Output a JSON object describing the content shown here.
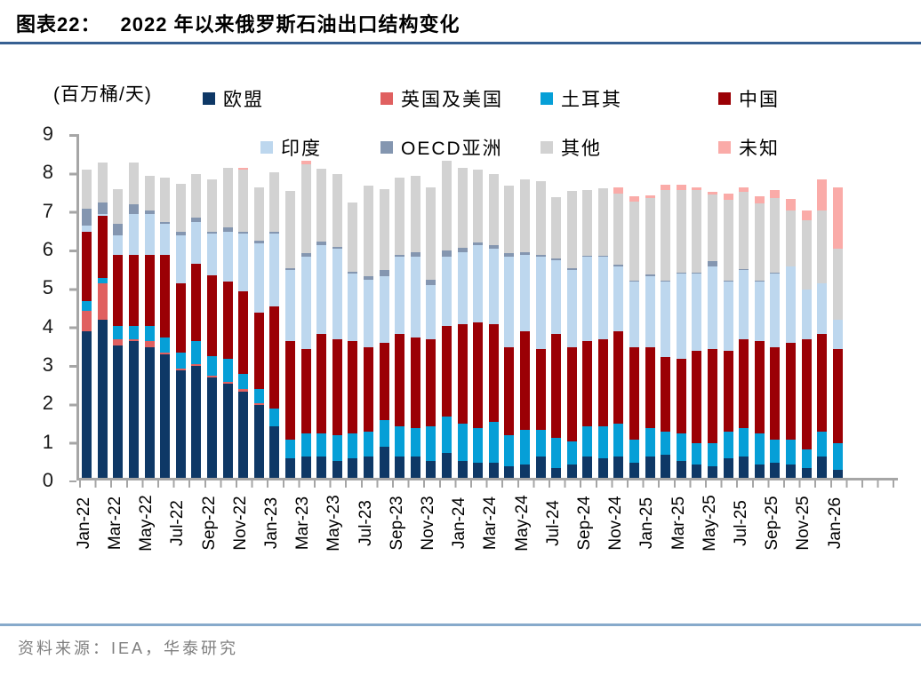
{
  "header": {
    "label": "图表22：",
    "title": "2022 年以来俄罗斯石油出口结构变化"
  },
  "footer": {
    "source": "资料来源：IEA，华泰研究"
  },
  "chart_data": {
    "type": "bar",
    "stacked": true,
    "title": "2022 年以来俄罗斯石油出口结构变化",
    "unit_label": "(百万桶/天)",
    "ylabel": "百万桶/天",
    "ylim": [
      0,
      9
    ],
    "yticks": [
      0,
      1,
      2,
      3,
      4,
      5,
      6,
      7,
      8,
      9
    ],
    "grid": false,
    "legend_position": "top",
    "axis_color": "#a6a6a6",
    "categories": [
      "Jan-22",
      "Feb-22",
      "Mar-22",
      "Apr-22",
      "May-22",
      "Jun-22",
      "Jul-22",
      "Aug-22",
      "Sep-22",
      "Oct-22",
      "Nov-22",
      "Dec-22",
      "Jan-23",
      "Feb-23",
      "Mar-23",
      "Apr-23",
      "May-23",
      "Jun-23",
      "Jul-23",
      "Aug-23",
      "Sep-23",
      "Oct-23",
      "Nov-23",
      "Dec-23",
      "Jan-24",
      "Feb-24",
      "Mar-24",
      "Apr-24",
      "May-24",
      "Jun-24",
      "Jul-24",
      "Aug-24",
      "Sep-24",
      "Oct-24",
      "Nov-24",
      "Dec-24",
      "Jan-25",
      "Feb-25",
      "Mar-25",
      "Apr-25",
      "May-25",
      "Jun-25",
      "Jul-25",
      "Aug-25",
      "Sep-25",
      "Oct-25",
      "Nov-25",
      "Dec-25",
      "Jan-26"
    ],
    "x_tick_labels_shown_every": 2,
    "series": [
      {
        "key": "eu",
        "name": "欧盟",
        "color": "#0e3866",
        "values": [
          3.8,
          4.1,
          3.45,
          3.55,
          3.4,
          3.2,
          2.8,
          2.9,
          2.6,
          2.45,
          2.25,
          1.9,
          1.35,
          0.5,
          0.55,
          0.55,
          0.45,
          0.5,
          0.55,
          0.8,
          0.55,
          0.55,
          0.45,
          0.65,
          0.45,
          0.4,
          0.4,
          0.3,
          0.35,
          0.55,
          0.25,
          0.35,
          0.55,
          0.5,
          0.55,
          0.4,
          0.55,
          0.6,
          0.45,
          0.35,
          0.3,
          0.5,
          0.55,
          0.35,
          0.4,
          0.35,
          0.25,
          0.55,
          0.2
        ]
      },
      {
        "key": "uk-us",
        "name": "英国及美国",
        "color": "#e06060",
        "values": [
          0.55,
          0.95,
          0.15,
          0.05,
          0.15,
          0.05,
          0.05,
          0.05,
          0.05,
          0.05,
          0.05,
          0.05,
          0,
          0,
          0,
          0,
          0,
          0,
          0,
          0,
          0,
          0,
          0,
          0,
          0,
          0,
          0,
          0,
          0,
          0,
          0,
          0,
          0,
          0,
          0,
          0,
          0,
          0,
          0,
          0,
          0,
          0,
          0,
          0,
          0,
          0,
          0,
          0,
          0
        ]
      },
      {
        "key": "turkey",
        "name": "土耳其",
        "color": "#069fd7",
        "values": [
          0.25,
          0.15,
          0.35,
          0.35,
          0.4,
          0.4,
          0.4,
          0.6,
          0.5,
          0.6,
          0.4,
          0.35,
          0.45,
          0.5,
          0.6,
          0.6,
          0.65,
          0.65,
          0.65,
          0.7,
          0.8,
          0.75,
          0.9,
          0.95,
          0.95,
          0.9,
          1.05,
          0.8,
          0.9,
          0.7,
          0.8,
          0.6,
          0.8,
          0.85,
          0.85,
          0.6,
          0.75,
          0.6,
          0.7,
          0.55,
          0.6,
          0.7,
          0.75,
          0.8,
          0.6,
          0.65,
          0.5,
          0.65,
          0.7
        ]
      },
      {
        "key": "china",
        "name": "中国",
        "color": "#9b0005",
        "values": [
          1.8,
          1.6,
          1.85,
          1.85,
          1.85,
          2.15,
          1.8,
          2.0,
          2.1,
          2.0,
          2.15,
          2.0,
          2.65,
          2.55,
          2.2,
          2.6,
          2.5,
          2.4,
          2.2,
          2.0,
          2.4,
          2.35,
          2.25,
          2.35,
          2.6,
          2.75,
          2.55,
          2.3,
          2.55,
          2.1,
          2.7,
          2.45,
          2.2,
          2.25,
          2.4,
          2.4,
          2.1,
          1.95,
          1.95,
          2.4,
          2.45,
          2.1,
          2.3,
          2.4,
          2.4,
          2.5,
          2.85,
          2.55,
          2.45
        ]
      },
      {
        "key": "india",
        "name": "印度",
        "color": "#bdd7ee",
        "values": [
          0.15,
          0.05,
          0.5,
          1.05,
          1.05,
          0.8,
          1.25,
          1.1,
          1.1,
          1.3,
          1.5,
          1.8,
          1.9,
          1.85,
          2.4,
          2.3,
          2.35,
          1.75,
          1.75,
          1.75,
          2.0,
          2.1,
          1.4,
          1.8,
          1.85,
          2.0,
          1.95,
          2.35,
          2.0,
          2.4,
          1.9,
          2.0,
          2.2,
          2.15,
          1.7,
          1.7,
          1.85,
          1.95,
          2.2,
          2.0,
          2.15,
          1.8,
          1.8,
          1.55,
          1.9,
          2.0,
          1.3,
          1.3,
          0.75
        ]
      },
      {
        "key": "oecd-asia",
        "name": "OECD亚洲",
        "color": "#8496b0",
        "values": [
          0.45,
          0.3,
          0.3,
          0.25,
          0.1,
          0.05,
          0.1,
          0.1,
          0.05,
          0.1,
          0.05,
          0.05,
          0.05,
          0.05,
          0.1,
          0.08,
          0.05,
          0.05,
          0.1,
          0.15,
          0.05,
          0.12,
          0.15,
          0.15,
          0.12,
          0.07,
          0.1,
          0.1,
          0.05,
          0.05,
          0.05,
          0.05,
          0.03,
          0.03,
          0.03,
          0.03,
          0.03,
          0.03,
          0.03,
          0.03,
          0.12,
          0.03,
          0.03,
          0.03,
          0.03,
          0,
          0,
          0,
          0
        ]
      },
      {
        "key": "other",
        "name": "其他",
        "color": "#d2d2d2",
        "values": [
          1.0,
          1.05,
          0.9,
          1.1,
          0.9,
          1.15,
          1.25,
          1.15,
          1.35,
          1.55,
          1.6,
          1.4,
          1.55,
          2.0,
          2.3,
          1.9,
          1.9,
          1.8,
          2.35,
          2.1,
          2.0,
          1.98,
          2.4,
          2.35,
          2.08,
          1.9,
          1.85,
          1.75,
          1.9,
          1.9,
          1.6,
          2.0,
          1.7,
          1.75,
          1.85,
          2.05,
          2.0,
          2.35,
          2.15,
          2.15,
          1.75,
          2.1,
          2.0,
          2.0,
          1.95,
          1.45,
          1.8,
          1.9,
          1.85
        ]
      },
      {
        "key": "unknown",
        "name": "未知",
        "color": "#faaba8",
        "values": [
          0,
          0,
          0,
          0,
          0,
          0,
          0,
          0,
          0,
          0,
          0.05,
          0,
          0,
          0,
          0.08,
          0,
          0,
          0,
          0,
          0,
          0,
          0,
          0,
          0,
          0,
          0,
          0,
          0,
          0,
          0,
          0,
          0,
          0,
          0,
          0.17,
          0.14,
          0.07,
          0.14,
          0.14,
          0.07,
          0.06,
          0.15,
          0.12,
          0.19,
          0.2,
          0.3,
          0.25,
          0.8,
          1.6
        ]
      }
    ]
  }
}
